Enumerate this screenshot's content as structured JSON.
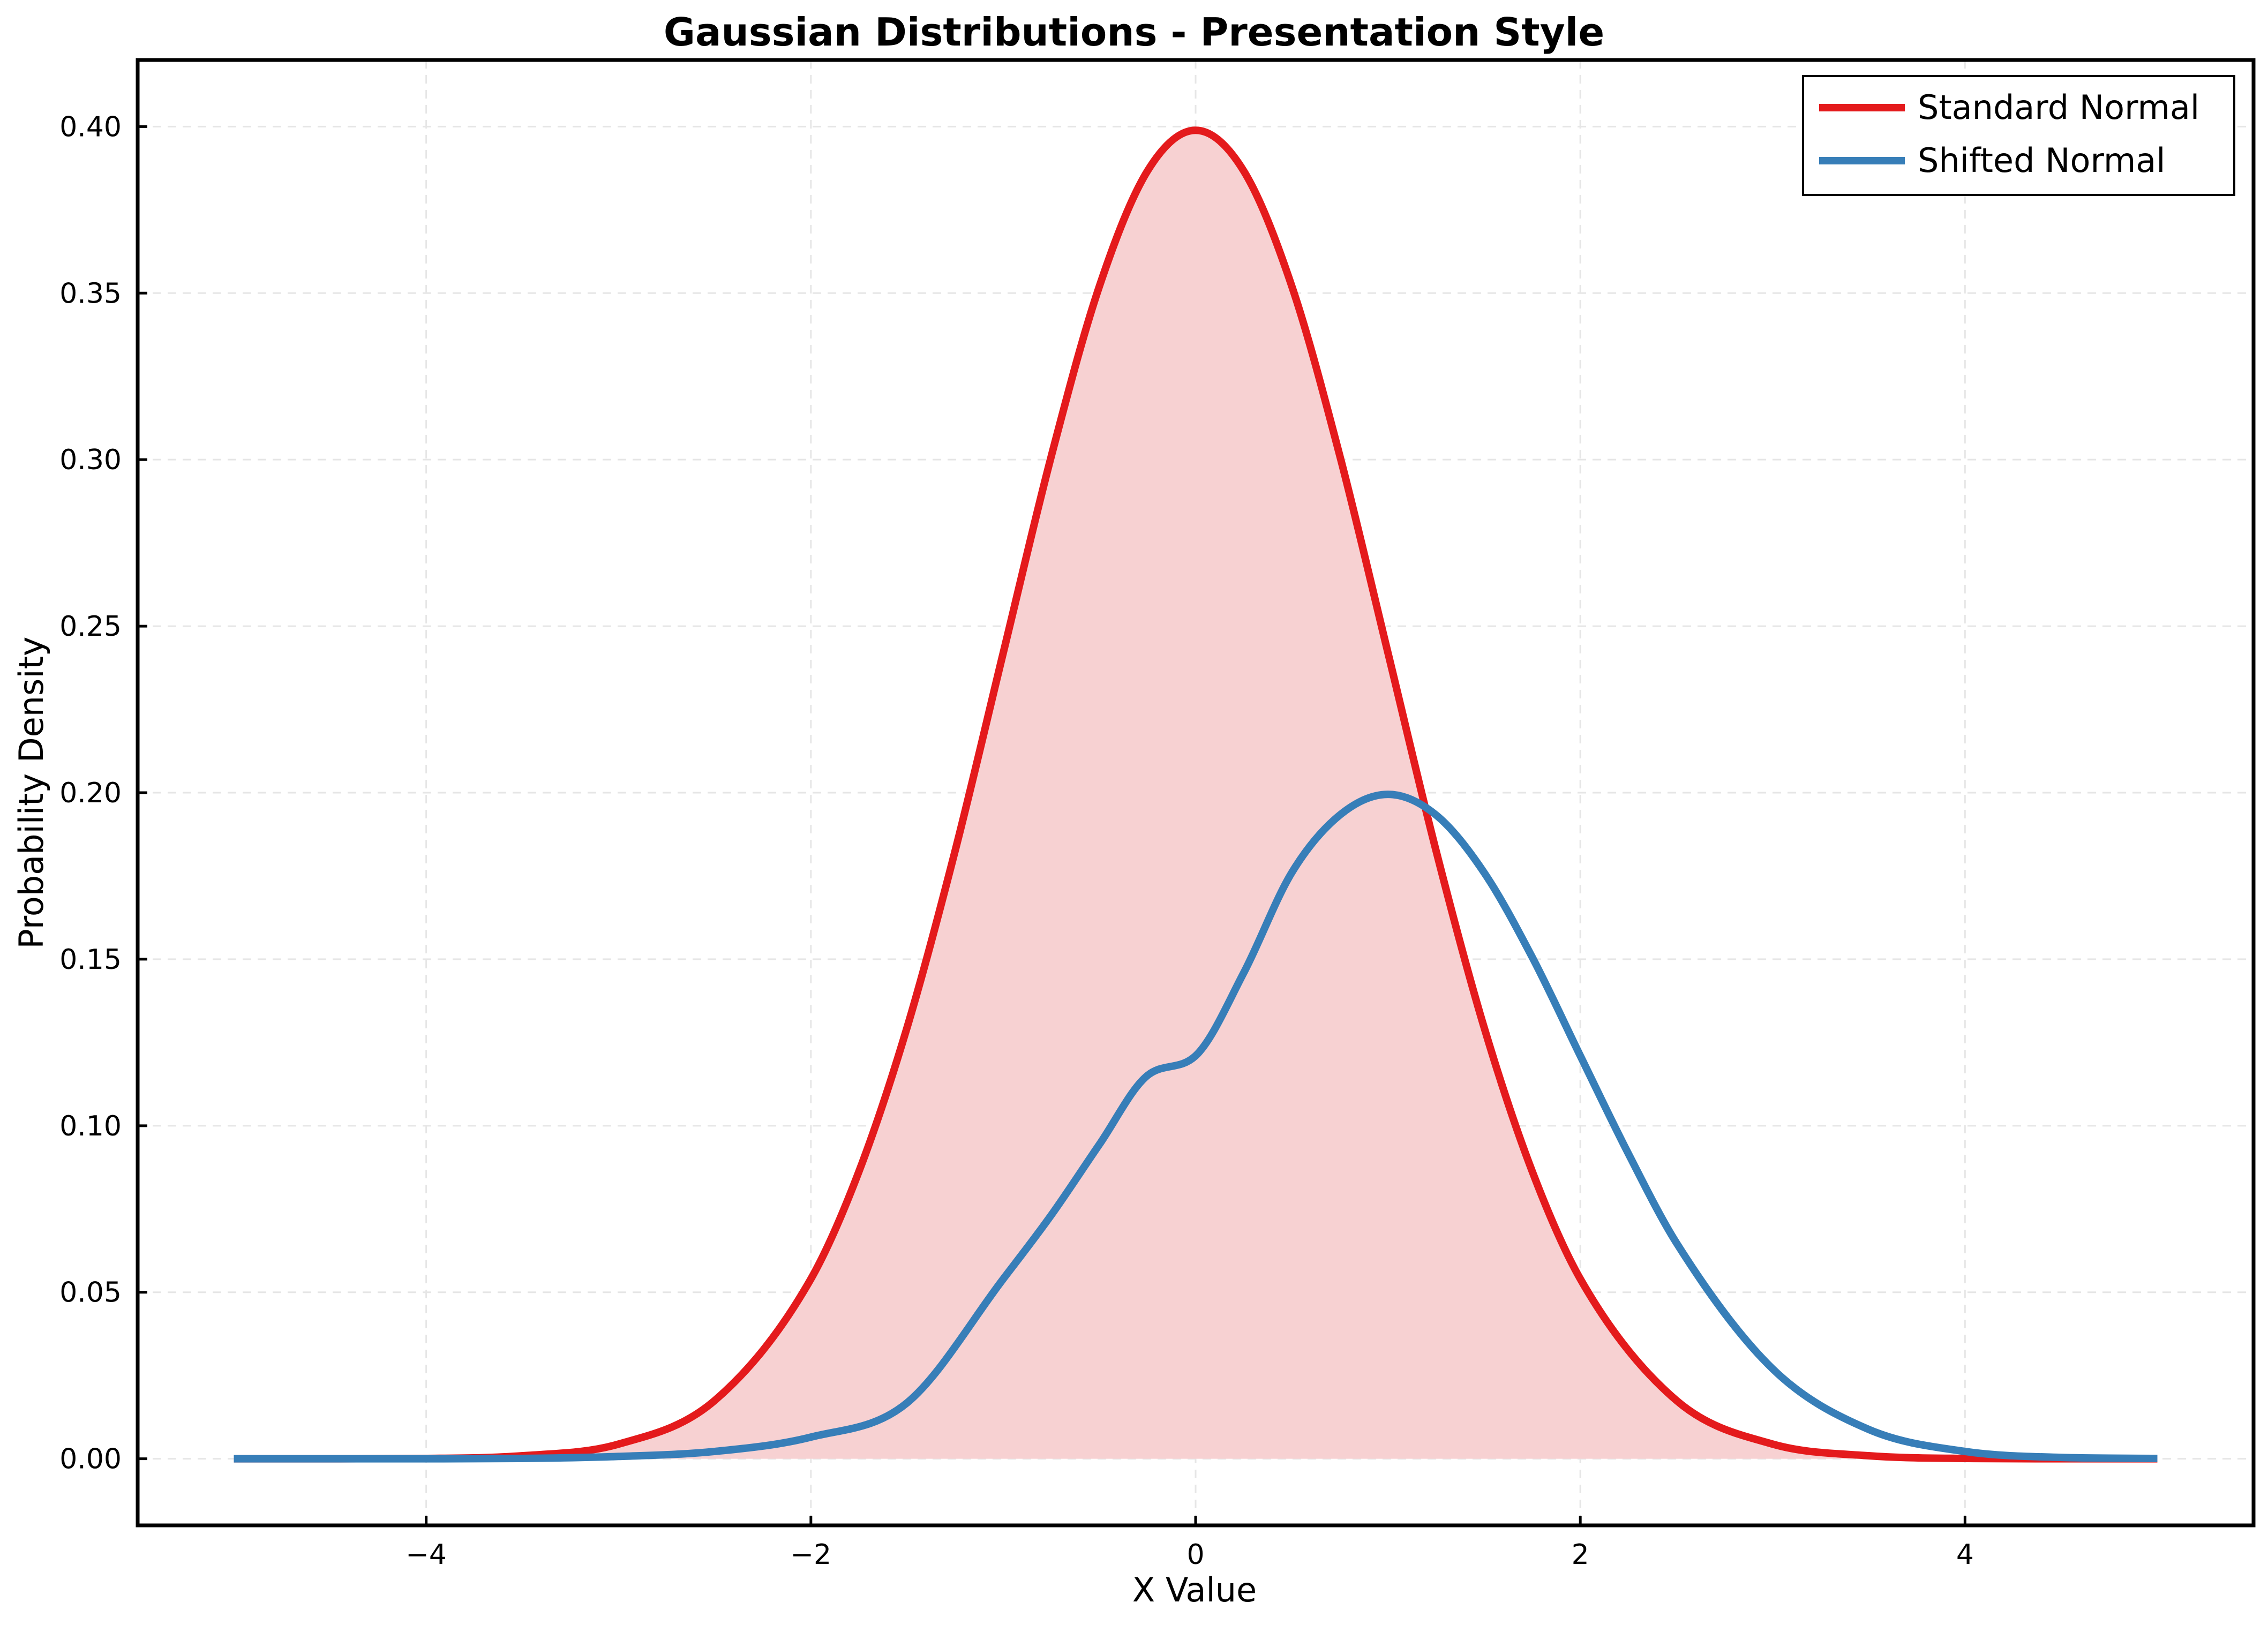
{
  "chart_data": {
    "type": "line",
    "title": "Gaussian Distributions - Presentation Style",
    "xlabel": "X Value",
    "ylabel": "Probability Density",
    "xlim": [
      -5.5,
      5.5
    ],
    "ylim": [
      -0.02,
      0.42
    ],
    "xticks": [
      -4,
      -2,
      0,
      2,
      4
    ],
    "xtick_labels": [
      "−4",
      "−2",
      "0",
      "2",
      "4"
    ],
    "yticks": [
      0.0,
      0.05,
      0.1,
      0.15,
      0.2,
      0.25,
      0.3,
      0.35,
      0.4
    ],
    "ytick_labels": [
      "0.00",
      "0.05",
      "0.10",
      "0.15",
      "0.20",
      "0.25",
      "0.30",
      "0.35",
      "0.40"
    ],
    "grid": true,
    "legend_position": "top-right",
    "series": [
      {
        "name": "Standard Normal",
        "color": "#e41a1c",
        "fill": true,
        "fill_color": "#f7d1d2",
        "x": [
          -5,
          -4.5,
          -4,
          -3.5,
          -3,
          -2.5,
          -2,
          -1.75,
          -1.5,
          -1.25,
          -1,
          -0.75,
          -0.5,
          -0.25,
          0,
          0.25,
          0.5,
          0.75,
          1,
          1.25,
          1.5,
          1.75,
          2,
          2.5,
          3,
          3.5,
          4,
          4.5,
          5
        ],
        "y": [
          0.0,
          0.0,
          0.0001,
          0.0009,
          0.0044,
          0.0175,
          0.054,
          0.0863,
          0.1295,
          0.1826,
          0.242,
          0.3011,
          0.3521,
          0.3867,
          0.3989,
          0.3867,
          0.3521,
          0.3011,
          0.242,
          0.1826,
          0.1295,
          0.0863,
          0.054,
          0.0175,
          0.0044,
          0.0009,
          0.0001,
          0.0,
          0.0
        ]
      },
      {
        "name": "Shifted Normal",
        "color": "#377eb8",
        "fill": false,
        "x": [
          -5,
          -4.5,
          -4,
          -3.5,
          -3,
          -2.5,
          -2,
          -1.5,
          -1,
          -0.75,
          -0.5,
          -0.25,
          0,
          0.25,
          0.5,
          0.75,
          1,
          1.25,
          1.5,
          1.75,
          2,
          2.25,
          2.5,
          3,
          3.5,
          4,
          4.5,
          5
        ],
        "y": [
          0.0,
          0.0,
          0.0,
          0.0001,
          0.0007,
          0.0022,
          0.0065,
          0.0168,
          0.054,
          0.0732,
          0.0944,
          0.1151,
          0.121,
          0.1459,
          0.176,
          0.1933,
          0.1995,
          0.1933,
          0.176,
          0.1506,
          0.121,
          0.0916,
          0.0648,
          0.027,
          0.0088,
          0.0022,
          0.0004,
          0.0001
        ]
      }
    ]
  }
}
